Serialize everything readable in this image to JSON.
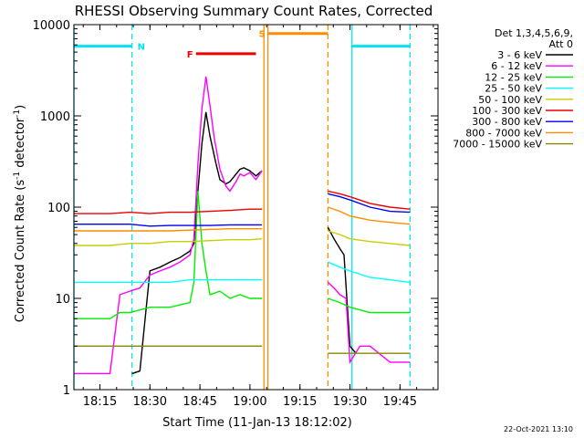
{
  "title": "RHESSI Observing Summary Count Rates, Corrected",
  "footer_date": "22-Oct-2021 13:10",
  "chart_data": {
    "type": "line",
    "title": "RHESSI Observing Summary Count Rates, Corrected",
    "xlabel": "Start Time (11-Jan-13 18:12:02)",
    "ylabel": "Corrected Count Rate (s⁻¹ detector⁻¹)",
    "ylabel_parts": {
      "main": "Corrected Count Rate (s",
      "sup1": "-1",
      "mid": " detector",
      "sup2": "-1",
      "end": ")"
    },
    "xlim": [
      18.12,
      19.94
    ],
    "ylim": [
      1,
      10000
    ],
    "yscale": "log",
    "xticks": [
      {
        "value": 18.25,
        "label": "18:15"
      },
      {
        "value": 18.5,
        "label": "18:30"
      },
      {
        "value": 18.75,
        "label": "18:45"
      },
      {
        "value": 19.0,
        "label": "19:00"
      },
      {
        "value": 19.25,
        "label": "19:15"
      },
      {
        "value": 19.5,
        "label": "19:30"
      },
      {
        "value": 19.75,
        "label": "19:45"
      }
    ],
    "yticks": [
      {
        "value": 1,
        "label": "1"
      },
      {
        "value": 10,
        "label": "10"
      },
      {
        "value": 100,
        "label": "100"
      },
      {
        "value": 1000,
        "label": "1000"
      },
      {
        "value": 10000,
        "label": "10000"
      }
    ],
    "legend": {
      "header": [
        "Det 1,3,4,5,6,9,",
        "Att 0"
      ],
      "placement": "right"
    },
    "flags": [
      {
        "label": "N",
        "color": "#00e5ee",
        "style": "bar",
        "ranges": [
          [
            18.12,
            18.41
          ],
          [
            19.51,
            19.8
          ]
        ],
        "y": 5800
      },
      {
        "label": "F",
        "color": "#ee0000",
        "style": "bar",
        "ranges": [
          [
            18.73,
            19.03
          ]
        ],
        "y": 4800
      },
      {
        "label": "S",
        "color": "#ff8c00",
        "style": "bar",
        "ranges": [
          [
            19.09,
            19.39
          ]
        ],
        "y": 8000
      }
    ],
    "vlines": [
      {
        "x": 18.41,
        "color": "#00e5ee",
        "dashed": true
      },
      {
        "x": 19.51,
        "color": "#00e5ee",
        "dashed": false
      },
      {
        "x": 19.8,
        "color": "#00e5ee",
        "dashed": true
      },
      {
        "x": 19.07,
        "color": "#ff8c00",
        "dashed": false
      },
      {
        "x": 19.09,
        "color": "#ff8c00",
        "dashed": false
      },
      {
        "x": 19.39,
        "color": "#ff8c00",
        "dashed": true
      },
      {
        "x": 18.12,
        "color": "#00e5ee",
        "dashed": false
      }
    ],
    "series": [
      {
        "name": "3 - 6 keV",
        "color": "#000000",
        "points": [
          [
            18.41,
            1.5
          ],
          [
            18.45,
            1.6
          ],
          [
            18.5,
            20
          ],
          [
            18.55,
            22
          ],
          [
            18.6,
            25
          ],
          [
            18.65,
            28
          ],
          [
            18.7,
            33
          ],
          [
            18.72,
            40
          ],
          [
            18.74,
            150
          ],
          [
            18.76,
            500
          ],
          [
            18.78,
            1100
          ],
          [
            18.8,
            600
          ],
          [
            18.83,
            300
          ],
          [
            18.85,
            200
          ],
          [
            18.88,
            180
          ],
          [
            18.9,
            190
          ],
          [
            18.93,
            230
          ],
          [
            18.95,
            260
          ],
          [
            18.97,
            270
          ],
          [
            19.0,
            250
          ],
          [
            19.03,
            220
          ],
          [
            19.06,
            250
          ]
        ],
        "points2": [
          [
            19.39,
            60
          ],
          [
            19.42,
            45
          ],
          [
            19.45,
            35
          ],
          [
            19.47,
            30
          ],
          [
            19.5,
            3
          ],
          [
            19.53,
            2.5
          ]
        ]
      },
      {
        "name": "6 - 12 keV",
        "color": "#ff00ff",
        "points": [
          [
            18.12,
            1.5
          ],
          [
            18.2,
            1.5
          ],
          [
            18.3,
            1.5
          ],
          [
            18.35,
            11
          ],
          [
            18.4,
            12
          ],
          [
            18.45,
            13
          ],
          [
            18.5,
            18
          ],
          [
            18.55,
            20
          ],
          [
            18.6,
            22
          ],
          [
            18.65,
            25
          ],
          [
            18.7,
            30
          ],
          [
            18.72,
            45
          ],
          [
            18.74,
            300
          ],
          [
            18.76,
            1200
          ],
          [
            18.78,
            2700
          ],
          [
            18.8,
            1300
          ],
          [
            18.82,
            600
          ],
          [
            18.85,
            260
          ],
          [
            18.88,
            170
          ],
          [
            18.9,
            150
          ],
          [
            18.93,
            190
          ],
          [
            18.95,
            230
          ],
          [
            18.97,
            220
          ],
          [
            19.0,
            240
          ],
          [
            19.03,
            200
          ],
          [
            19.06,
            250
          ]
        ],
        "points2": [
          [
            19.39,
            15
          ],
          [
            19.42,
            13
          ],
          [
            19.45,
            11
          ],
          [
            19.48,
            10
          ],
          [
            19.5,
            2
          ],
          [
            19.55,
            3
          ],
          [
            19.6,
            3
          ],
          [
            19.7,
            2
          ],
          [
            19.8,
            2
          ]
        ]
      },
      {
        "name": "12 - 25 keV",
        "color": "#00ee00",
        "points": [
          [
            18.12,
            6
          ],
          [
            18.2,
            6
          ],
          [
            18.3,
            6
          ],
          [
            18.35,
            7
          ],
          [
            18.4,
            7
          ],
          [
            18.5,
            8
          ],
          [
            18.6,
            8
          ],
          [
            18.7,
            9
          ],
          [
            18.72,
            15
          ],
          [
            18.74,
            150
          ],
          [
            18.76,
            40
          ],
          [
            18.78,
            20
          ],
          [
            18.8,
            11
          ],
          [
            18.85,
            12
          ],
          [
            18.9,
            10
          ],
          [
            18.95,
            11
          ],
          [
            19.0,
            10
          ],
          [
            19.06,
            10
          ]
        ],
        "points2": [
          [
            19.39,
            10
          ],
          [
            19.45,
            9
          ],
          [
            19.5,
            8
          ],
          [
            19.6,
            7
          ],
          [
            19.7,
            7
          ],
          [
            19.8,
            7
          ]
        ]
      },
      {
        "name": "25 - 50 keV",
        "color": "#00ffff",
        "points": [
          [
            18.12,
            15
          ],
          [
            18.2,
            15
          ],
          [
            18.3,
            15
          ],
          [
            18.4,
            15
          ],
          [
            18.5,
            15
          ],
          [
            18.6,
            15
          ],
          [
            18.7,
            16
          ],
          [
            18.8,
            16
          ],
          [
            18.9,
            16
          ],
          [
            19.0,
            16
          ],
          [
            19.06,
            16
          ]
        ],
        "points2": [
          [
            19.39,
            25
          ],
          [
            19.45,
            22
          ],
          [
            19.5,
            20
          ],
          [
            19.6,
            17
          ],
          [
            19.7,
            16
          ],
          [
            19.8,
            15
          ]
        ]
      },
      {
        "name": "50 - 100 keV",
        "color": "#cccc00",
        "points": [
          [
            18.12,
            38
          ],
          [
            18.2,
            38
          ],
          [
            18.3,
            38
          ],
          [
            18.4,
            40
          ],
          [
            18.5,
            40
          ],
          [
            18.6,
            42
          ],
          [
            18.7,
            42
          ],
          [
            18.8,
            43
          ],
          [
            18.9,
            44
          ],
          [
            19.0,
            44
          ],
          [
            19.06,
            45
          ]
        ],
        "points2": [
          [
            19.39,
            55
          ],
          [
            19.45,
            50
          ],
          [
            19.5,
            45
          ],
          [
            19.6,
            42
          ],
          [
            19.7,
            40
          ],
          [
            19.8,
            38
          ]
        ]
      },
      {
        "name": "100 - 300 keV",
        "color": "#ee0000",
        "points": [
          [
            18.12,
            85
          ],
          [
            18.2,
            85
          ],
          [
            18.3,
            85
          ],
          [
            18.4,
            88
          ],
          [
            18.5,
            85
          ],
          [
            18.6,
            88
          ],
          [
            18.7,
            88
          ],
          [
            18.8,
            90
          ],
          [
            18.9,
            92
          ],
          [
            19.0,
            95
          ],
          [
            19.06,
            95
          ]
        ],
        "points2": [
          [
            19.39,
            150
          ],
          [
            19.45,
            140
          ],
          [
            19.5,
            130
          ],
          [
            19.6,
            110
          ],
          [
            19.7,
            100
          ],
          [
            19.8,
            95
          ]
        ]
      },
      {
        "name": "300 - 800 keV",
        "color": "#0000ee",
        "points": [
          [
            18.12,
            65
          ],
          [
            18.2,
            65
          ],
          [
            18.3,
            65
          ],
          [
            18.4,
            65
          ],
          [
            18.5,
            62
          ],
          [
            18.6,
            63
          ],
          [
            18.7,
            63
          ],
          [
            18.8,
            63
          ],
          [
            18.9,
            64
          ],
          [
            19.0,
            64
          ],
          [
            19.06,
            64
          ]
        ],
        "points2": [
          [
            19.39,
            140
          ],
          [
            19.45,
            130
          ],
          [
            19.5,
            120
          ],
          [
            19.6,
            100
          ],
          [
            19.7,
            90
          ],
          [
            19.8,
            88
          ]
        ]
      },
      {
        "name": "800 - 7000 keV",
        "color": "#ff8c00",
        "points": [
          [
            18.12,
            55
          ],
          [
            18.2,
            55
          ],
          [
            18.3,
            55
          ],
          [
            18.4,
            55
          ],
          [
            18.5,
            55
          ],
          [
            18.6,
            55
          ],
          [
            18.7,
            56
          ],
          [
            18.8,
            57
          ],
          [
            18.9,
            58
          ],
          [
            19.0,
            58
          ],
          [
            19.06,
            58
          ]
        ],
        "points2": [
          [
            19.39,
            100
          ],
          [
            19.45,
            90
          ],
          [
            19.5,
            80
          ],
          [
            19.6,
            72
          ],
          [
            19.7,
            68
          ],
          [
            19.8,
            65
          ]
        ]
      },
      {
        "name": "7000 - 15000 keV",
        "color": "#888800",
        "points": [
          [
            18.12,
            3
          ],
          [
            18.2,
            3
          ],
          [
            18.3,
            3
          ],
          [
            18.4,
            3
          ],
          [
            18.5,
            3
          ],
          [
            18.6,
            3
          ],
          [
            18.7,
            3
          ],
          [
            18.8,
            3
          ],
          [
            18.9,
            3
          ],
          [
            19.0,
            3
          ],
          [
            19.06,
            3
          ]
        ],
        "points2": [
          [
            19.39,
            2.5
          ],
          [
            19.45,
            2.5
          ],
          [
            19.5,
            2.5
          ],
          [
            19.6,
            2.5
          ],
          [
            19.7,
            2.5
          ],
          [
            19.8,
            2.5
          ]
        ]
      }
    ]
  }
}
